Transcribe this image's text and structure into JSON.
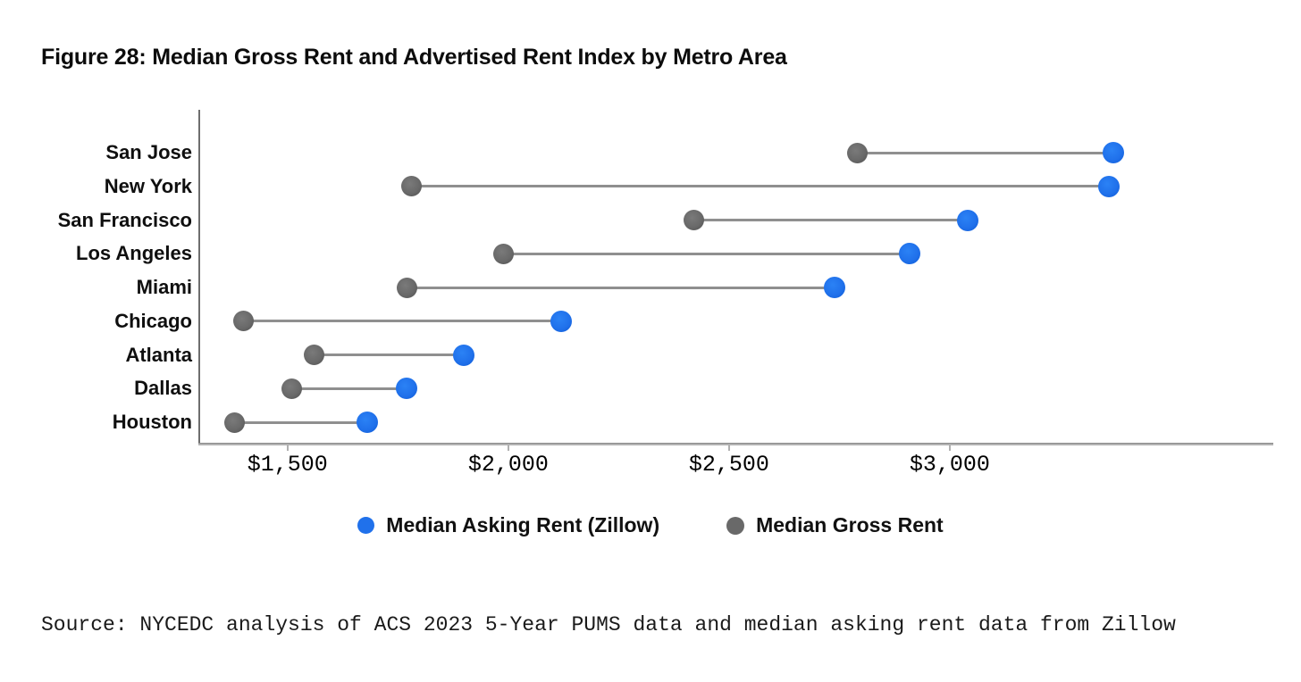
{
  "title": "Figure 28: Median Gross Rent and Advertised Rent Index by Metro Area",
  "source": "Source: NYCEDC analysis of ACS 2023 5-Year PUMS data and median asking rent data from Zillow",
  "colors": {
    "asking_blue": "#2071eb",
    "gross_gray": "#696969",
    "connector_gray": "#8f8f8f",
    "axis_gray": "#6e6e6e"
  },
  "chart_data": {
    "type": "dumbbell",
    "title": "Figure 28: Median Gross Rent and Advertised Rent Index by Metro Area",
    "categories": [
      "San Jose",
      "New York",
      "San Francisco",
      "Los Angeles",
      "Miami",
      "Chicago",
      "Atlanta",
      "Dallas",
      "Houston"
    ],
    "series": [
      {
        "name": "Median Asking Rent (Zillow)",
        "color": "#2071eb",
        "values": [
          3370,
          3360,
          3040,
          2910,
          2740,
          2120,
          1900,
          1770,
          1680
        ]
      },
      {
        "name": "Median Gross Rent",
        "color": "#696969",
        "values": [
          2790,
          1780,
          2420,
          1990,
          1770,
          1400,
          1560,
          1510,
          1380
        ]
      }
    ],
    "x_ticks": [
      {
        "value": 1500,
        "label": "$1,500"
      },
      {
        "value": 2000,
        "label": "$2,000"
      },
      {
        "value": 2500,
        "label": "$2,500"
      },
      {
        "value": 3000,
        "label": "$3,000"
      }
    ],
    "xlim": [
      1300,
      3733
    ],
    "xlabel": "",
    "ylabel": "",
    "grid": false,
    "legend_position": "bottom"
  }
}
